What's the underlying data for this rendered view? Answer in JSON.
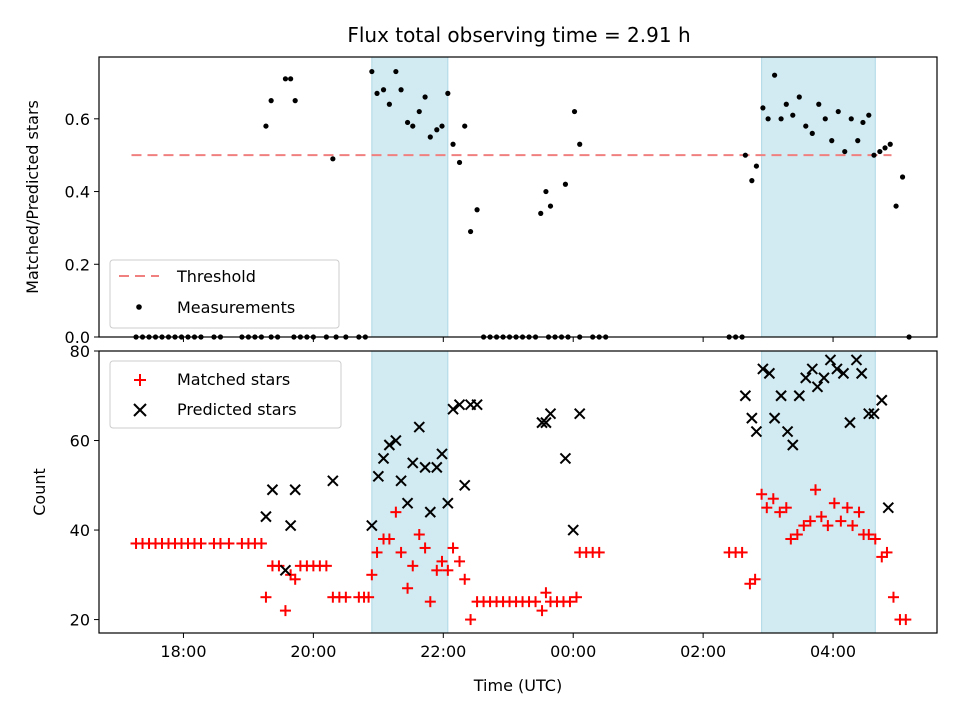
{
  "title": "Flux total observing time = 2.91 h",
  "colors": {
    "threshold": "#f08080",
    "measurements": "#000000",
    "matched": "#ff0000",
    "predicted": "#000000",
    "span": "#add8e6"
  },
  "chart_data": [
    {
      "type": "scatter",
      "ylabel": "Matched/Predicted stars",
      "xlabel": "",
      "ylim": [
        0,
        0.77
      ],
      "yticks": [
        "0.0",
        "0.2",
        "0.4",
        "0.6"
      ],
      "threshold": {
        "name": "Threshold",
        "y": 0.5,
        "x_range": [
          17.2,
          28.9
        ]
      },
      "highlight_spans": [
        [
          20.9,
          22.07
        ],
        [
          26.9,
          28.65
        ]
      ],
      "legend": {
        "position": "lower-left",
        "entries": [
          "Threshold",
          "Measurements"
        ]
      },
      "series": [
        {
          "name": "Measurements",
          "marker": "dot",
          "points": [
            [
              17.27,
              0
            ],
            [
              17.37,
              0
            ],
            [
              17.47,
              0
            ],
            [
              17.57,
              0
            ],
            [
              17.67,
              0
            ],
            [
              17.77,
              0
            ],
            [
              17.87,
              0
            ],
            [
              17.97,
              0
            ],
            [
              18.07,
              0
            ],
            [
              18.17,
              0
            ],
            [
              18.27,
              0
            ],
            [
              18.47,
              0
            ],
            [
              18.57,
              0
            ],
            [
              18.9,
              0
            ],
            [
              19.0,
              0
            ],
            [
              19.1,
              0
            ],
            [
              19.2,
              0
            ],
            [
              19.35,
              0
            ],
            [
              19.45,
              0
            ],
            [
              19.7,
              0
            ],
            [
              19.8,
              0
            ],
            [
              19.9,
              0
            ],
            [
              20.0,
              0
            ],
            [
              20.2,
              0
            ],
            [
              20.35,
              0
            ],
            [
              20.5,
              0
            ],
            [
              20.7,
              0
            ],
            [
              20.8,
              0
            ],
            [
              19.27,
              0.58
            ],
            [
              19.35,
              0.65
            ],
            [
              19.57,
              0.71
            ],
            [
              19.65,
              0.71
            ],
            [
              19.72,
              0.65
            ],
            [
              20.3,
              0.49
            ],
            [
              20.9,
              0.73
            ],
            [
              20.98,
              0.67
            ],
            [
              21.08,
              0.68
            ],
            [
              21.17,
              0.64
            ],
            [
              21.27,
              0.73
            ],
            [
              21.35,
              0.68
            ],
            [
              21.45,
              0.59
            ],
            [
              21.53,
              0.58
            ],
            [
              21.63,
              0.62
            ],
            [
              21.72,
              0.66
            ],
            [
              21.8,
              0.55
            ],
            [
              21.9,
              0.57
            ],
            [
              21.98,
              0.58
            ],
            [
              22.07,
              0.67
            ],
            [
              22.15,
              0.53
            ],
            [
              22.25,
              0.48
            ],
            [
              22.33,
              0.58
            ],
            [
              22.42,
              0.29
            ],
            [
              22.52,
              0.35
            ],
            [
              22.62,
              0
            ],
            [
              22.72,
              0
            ],
            [
              22.82,
              0
            ],
            [
              22.92,
              0
            ],
            [
              23.02,
              0
            ],
            [
              23.12,
              0
            ],
            [
              23.22,
              0
            ],
            [
              23.32,
              0
            ],
            [
              23.42,
              0
            ],
            [
              23.62,
              0
            ],
            [
              23.72,
              0
            ],
            [
              23.82,
              0
            ],
            [
              23.92,
              0
            ],
            [
              24.1,
              0
            ],
            [
              24.3,
              0
            ],
            [
              24.4,
              0
            ],
            [
              24.5,
              0
            ],
            [
              23.5,
              0.34
            ],
            [
              23.58,
              0.4
            ],
            [
              23.65,
              0.36
            ],
            [
              23.88,
              0.42
            ],
            [
              24.02,
              0.62
            ],
            [
              24.1,
              0.53
            ],
            [
              26.4,
              0
            ],
            [
              26.5,
              0
            ],
            [
              26.6,
              0
            ],
            [
              26.65,
              0.5
            ],
            [
              26.75,
              0.43
            ],
            [
              26.82,
              0.47
            ],
            [
              26.92,
              0.63
            ],
            [
              27.0,
              0.6
            ],
            [
              27.1,
              0.72
            ],
            [
              27.2,
              0.6
            ],
            [
              27.28,
              0.64
            ],
            [
              27.38,
              0.61
            ],
            [
              27.48,
              0.66
            ],
            [
              27.58,
              0.58
            ],
            [
              27.68,
              0.56
            ],
            [
              27.78,
              0.64
            ],
            [
              27.88,
              0.6
            ],
            [
              27.98,
              0.54
            ],
            [
              28.08,
              0.62
            ],
            [
              28.18,
              0.51
            ],
            [
              28.28,
              0.6
            ],
            [
              28.38,
              0.54
            ],
            [
              28.46,
              0.59
            ],
            [
              28.55,
              0.61
            ],
            [
              28.63,
              0.5
            ],
            [
              28.72,
              0.51
            ],
            [
              28.8,
              0.52
            ],
            [
              28.88,
              0.53
            ],
            [
              28.97,
              0.36
            ],
            [
              29.07,
              0.44
            ],
            [
              29.17,
              0
            ]
          ]
        }
      ]
    },
    {
      "type": "scatter",
      "ylabel": "Count",
      "xlabel": "Time (UTC)",
      "ylim": [
        17,
        80
      ],
      "yticks": [
        "20",
        "40",
        "60",
        "80"
      ],
      "xticks": [
        "18:00",
        "20:00",
        "22:00",
        "00:00",
        "02:00",
        "04:00"
      ],
      "highlight_spans": [
        [
          20.9,
          22.07
        ],
        [
          26.9,
          28.65
        ]
      ],
      "legend": {
        "position": "upper-left",
        "entries": [
          "Matched stars",
          "Predicted stars"
        ]
      },
      "series": [
        {
          "name": "Matched stars",
          "marker": "plus",
          "points": [
            [
              17.27,
              37
            ],
            [
              17.37,
              37
            ],
            [
              17.47,
              37
            ],
            [
              17.57,
              37
            ],
            [
              17.67,
              37
            ],
            [
              17.77,
              37
            ],
            [
              17.87,
              37
            ],
            [
              17.97,
              37
            ],
            [
              18.07,
              37
            ],
            [
              18.17,
              37
            ],
            [
              18.27,
              37
            ],
            [
              18.47,
              37
            ],
            [
              18.57,
              37
            ],
            [
              18.7,
              37
            ],
            [
              18.9,
              37
            ],
            [
              19.0,
              37
            ],
            [
              19.1,
              37
            ],
            [
              19.2,
              37
            ],
            [
              19.27,
              25
            ],
            [
              19.37,
              32
            ],
            [
              19.47,
              32
            ],
            [
              19.57,
              22
            ],
            [
              19.65,
              30
            ],
            [
              19.72,
              29
            ],
            [
              19.8,
              32
            ],
            [
              19.9,
              32
            ],
            [
              20.0,
              32
            ],
            [
              20.1,
              32
            ],
            [
              20.2,
              32
            ],
            [
              20.3,
              25
            ],
            [
              20.4,
              25
            ],
            [
              20.5,
              25
            ],
            [
              20.7,
              25
            ],
            [
              20.78,
              25
            ],
            [
              20.85,
              25
            ],
            [
              20.9,
              30
            ],
            [
              20.98,
              35
            ],
            [
              21.08,
              38
            ],
            [
              21.17,
              38
            ],
            [
              21.27,
              44
            ],
            [
              21.35,
              35
            ],
            [
              21.45,
              27
            ],
            [
              21.53,
              32
            ],
            [
              21.63,
              39
            ],
            [
              21.72,
              36
            ],
            [
              21.8,
              24
            ],
            [
              21.9,
              31
            ],
            [
              21.98,
              33
            ],
            [
              22.07,
              31
            ],
            [
              22.15,
              36
            ],
            [
              22.25,
              33
            ],
            [
              22.33,
              29
            ],
            [
              22.42,
              20
            ],
            [
              22.52,
              24
            ],
            [
              22.62,
              24
            ],
            [
              22.72,
              24
            ],
            [
              22.82,
              24
            ],
            [
              22.92,
              24
            ],
            [
              23.02,
              24
            ],
            [
              23.12,
              24
            ],
            [
              23.22,
              24
            ],
            [
              23.32,
              24
            ],
            [
              23.42,
              24
            ],
            [
              23.52,
              22
            ],
            [
              23.58,
              26
            ],
            [
              23.65,
              24
            ],
            [
              23.75,
              24
            ],
            [
              23.85,
              24
            ],
            [
              23.95,
              24
            ],
            [
              24.05,
              25
            ],
            [
              24.1,
              35
            ],
            [
              24.2,
              35
            ],
            [
              24.3,
              35
            ],
            [
              24.4,
              35
            ],
            [
              26.4,
              35
            ],
            [
              26.5,
              35
            ],
            [
              26.6,
              35
            ],
            [
              26.72,
              28
            ],
            [
              26.8,
              29
            ],
            [
              26.9,
              48
            ],
            [
              26.98,
              45
            ],
            [
              27.08,
              47
            ],
            [
              27.18,
              44
            ],
            [
              27.28,
              45
            ],
            [
              27.35,
              38
            ],
            [
              27.45,
              39
            ],
            [
              27.55,
              41
            ],
            [
              27.65,
              42
            ],
            [
              27.73,
              49
            ],
            [
              27.82,
              43
            ],
            [
              27.92,
              41
            ],
            [
              28.02,
              46
            ],
            [
              28.12,
              42
            ],
            [
              28.22,
              45
            ],
            [
              28.3,
              41
            ],
            [
              28.4,
              44
            ],
            [
              28.47,
              39
            ],
            [
              28.55,
              39
            ],
            [
              28.65,
              38
            ],
            [
              28.75,
              34
            ],
            [
              28.83,
              35
            ],
            [
              28.93,
              25
            ],
            [
              29.03,
              20
            ],
            [
              29.12,
              20
            ]
          ]
        },
        {
          "name": "Predicted stars",
          "marker": "x",
          "points": [
            [
              19.27,
              43
            ],
            [
              19.37,
              49
            ],
            [
              19.57,
              31
            ],
            [
              19.65,
              41
            ],
            [
              19.72,
              49
            ],
            [
              20.3,
              51
            ],
            [
              20.9,
              41
            ],
            [
              21.0,
              52
            ],
            [
              21.08,
              56
            ],
            [
              21.17,
              59
            ],
            [
              21.27,
              60
            ],
            [
              21.35,
              51
            ],
            [
              21.45,
              46
            ],
            [
              21.53,
              55
            ],
            [
              21.63,
              63
            ],
            [
              21.72,
              54
            ],
            [
              21.8,
              44
            ],
            [
              21.9,
              54
            ],
            [
              21.98,
              57
            ],
            [
              22.07,
              46
            ],
            [
              22.15,
              67
            ],
            [
              22.25,
              68
            ],
            [
              22.33,
              50
            ],
            [
              22.42,
              68
            ],
            [
              22.52,
              68
            ],
            [
              23.52,
              64
            ],
            [
              23.58,
              64
            ],
            [
              23.65,
              66
            ],
            [
              23.88,
              56
            ],
            [
              24.0,
              40
            ],
            [
              24.1,
              66
            ],
            [
              26.65,
              70
            ],
            [
              26.75,
              65
            ],
            [
              26.82,
              62
            ],
            [
              26.92,
              76
            ],
            [
              27.02,
              75
            ],
            [
              27.1,
              65
            ],
            [
              27.2,
              70
            ],
            [
              27.3,
              62
            ],
            [
              27.38,
              59
            ],
            [
              27.48,
              70
            ],
            [
              27.58,
              74
            ],
            [
              27.68,
              76
            ],
            [
              27.76,
              72
            ],
            [
              27.86,
              74
            ],
            [
              27.96,
              78
            ],
            [
              28.06,
              76
            ],
            [
              28.16,
              75
            ],
            [
              28.26,
              64
            ],
            [
              28.36,
              78
            ],
            [
              28.44,
              75
            ],
            [
              28.55,
              66
            ],
            [
              28.63,
              66
            ],
            [
              28.75,
              69
            ],
            [
              28.85,
              45
            ]
          ]
        }
      ]
    }
  ]
}
